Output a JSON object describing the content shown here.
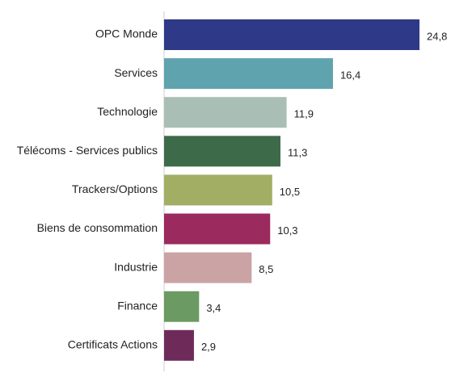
{
  "chart_data": {
    "type": "bar",
    "orientation": "horizontal",
    "categories": [
      "OPC Monde",
      "Services",
      "Technologie",
      "Télécoms - Services publics",
      "Trackers/Options",
      "Biens de consommation",
      "Industrie",
      "Finance",
      "Certificats Actions"
    ],
    "values": [
      24.8,
      16.4,
      11.9,
      11.3,
      10.5,
      10.3,
      8.5,
      3.4,
      2.9
    ],
    "value_labels": [
      "24,8",
      "16,4",
      "11,9",
      "11,3",
      "10,5",
      "10,3",
      "8,5",
      "3,4",
      "2,9"
    ],
    "colors": [
      "#2e3a87",
      "#5fa3ae",
      "#a9bfb5",
      "#3d6b4a",
      "#a3ae65",
      "#9b2a5f",
      "#cba3a5",
      "#6b9a62",
      "#6e2b5a"
    ]
  }
}
